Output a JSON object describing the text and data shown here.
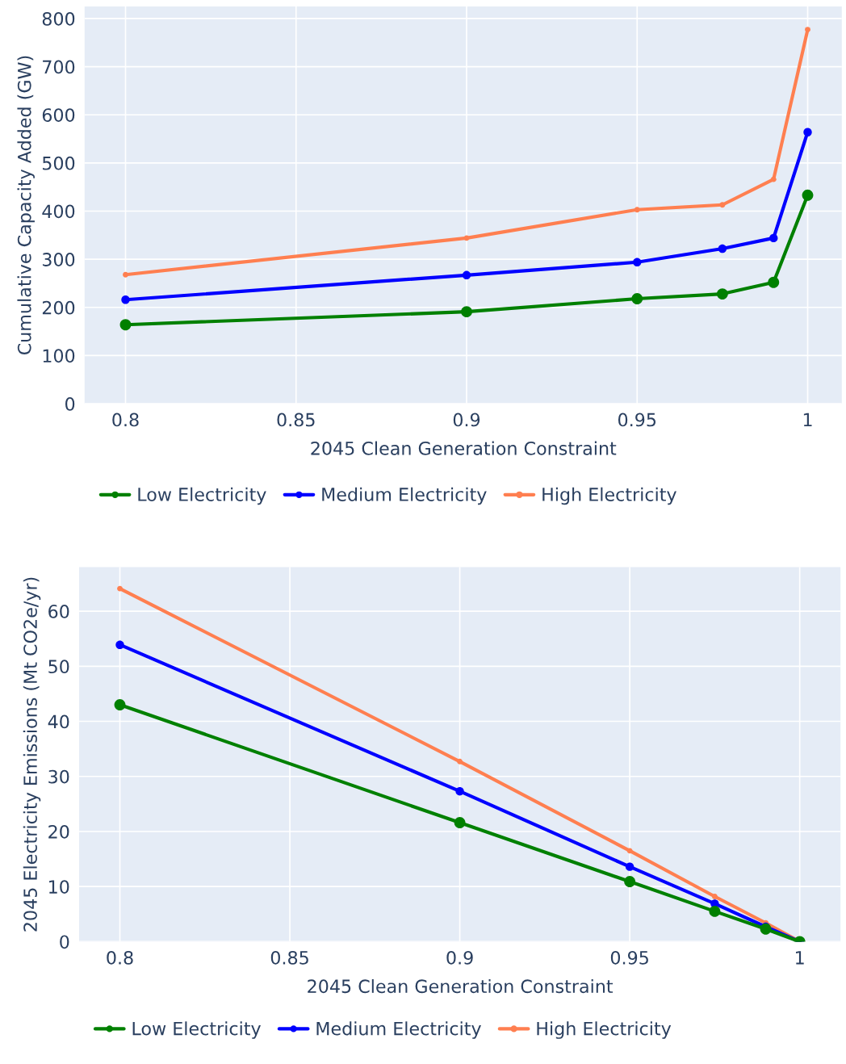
{
  "chart_data": [
    {
      "type": "line",
      "xlabel": "2045 Clean Generation Constraint",
      "ylabel": "Cumulative Capacity Added (GW)",
      "x": [
        0.8,
        0.9,
        0.95,
        0.975,
        0.99,
        1
      ],
      "xlim": [
        0.788,
        1.01
      ],
      "xticks": [
        0.8,
        0.85,
        0.9,
        0.95,
        1
      ],
      "ylim": [
        0,
        825
      ],
      "yticks": [
        0,
        100,
        200,
        300,
        400,
        500,
        600,
        700,
        800
      ],
      "grid": true,
      "legend": "bottom",
      "marker": "circle",
      "line_style": "solid",
      "series": [
        {
          "name": "Low Electricity",
          "color": "#008000",
          "values": [
            164,
            191,
            218,
            228,
            252,
            433
          ]
        },
        {
          "name": "Medium Electricity",
          "color": "#0000ff",
          "values": [
            216,
            267,
            294,
            322,
            344,
            564
          ]
        },
        {
          "name": "High Electricity",
          "color": "#ff7f50",
          "values": [
            268,
            344,
            403,
            413,
            466,
            777
          ]
        }
      ]
    },
    {
      "type": "line",
      "xlabel": "2045 Clean Generation Constraint",
      "ylabel": "2045 Electricity Emissions (Mt CO2e/yr)",
      "x": [
        0.8,
        0.9,
        0.95,
        0.975,
        0.99,
        1
      ],
      "xlim": [
        0.788,
        1.012
      ],
      "xticks": [
        0.8,
        0.85,
        0.9,
        0.95,
        1
      ],
      "ylim": [
        0,
        68
      ],
      "yticks": [
        0,
        10,
        20,
        30,
        40,
        50,
        60
      ],
      "grid": true,
      "legend": "bottom",
      "marker": "circle",
      "line_style": "solid",
      "series": [
        {
          "name": "Low Electricity",
          "color": "#008000",
          "values": [
            43.0,
            21.6,
            10.9,
            5.5,
            2.3,
            0
          ]
        },
        {
          "name": "Medium Electricity",
          "color": "#0000ff",
          "values": [
            53.9,
            27.3,
            13.6,
            6.9,
            2.7,
            0
          ]
        },
        {
          "name": "High Electricity",
          "color": "#ff7f50",
          "values": [
            64.1,
            32.7,
            16.5,
            8.2,
            3.4,
            0
          ]
        }
      ]
    }
  ]
}
